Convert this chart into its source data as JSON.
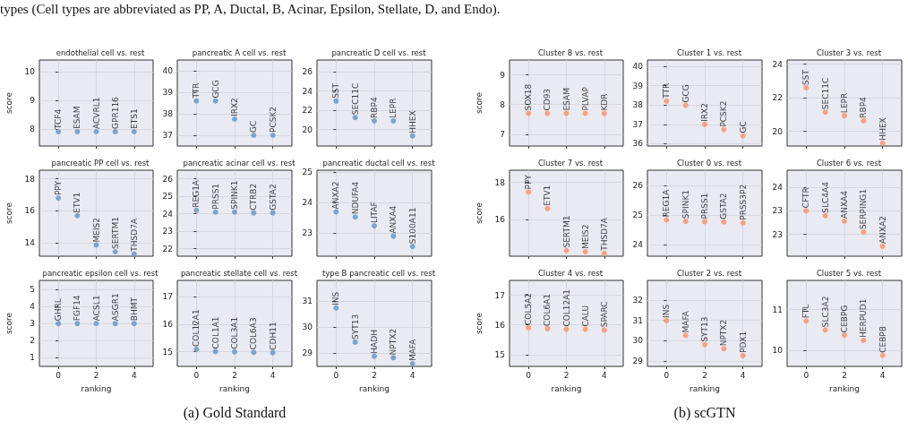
{
  "chart_data": [
    {
      "type": "scatter",
      "title": "endothelial cell vs. rest",
      "ylabel": "score",
      "x": [
        0,
        1,
        2,
        3,
        4
      ],
      "values": [
        7.9,
        7.9,
        7.9,
        7.9,
        7.9
      ],
      "color": "#79a5cf",
      "xlim": [
        -1,
        5
      ],
      "xticks": [
        0,
        2,
        4
      ],
      "ylim": [
        7.4,
        10.4
      ],
      "yticks": [
        8,
        9,
        10
      ],
      "grid": true,
      "marker": "circle",
      "tick_labels": "y",
      "annotations": [
        "types (Cell types are abbreviated as PP, A, Ductal, B, Acinar, Epsilon, Stellate, D, and Endo).",
        {
          "text": "TCF4",
          "x": 0,
          "y": 7.9
        },
        {
          "text": "ESAM",
          "x": 1,
          "y": 7.9
        },
        {
          "text": "ACVRL1",
          "x": 2,
          "y": 7.9
        },
        {
          "text": "GPR116",
          "x": 3,
          "y": 7.9
        },
        {
          "text": "ETS1",
          "x": 4,
          "y": 7.9
        }
      ]
    },
    {
      "type": "scatter",
      "title": "pancreatic A cell vs. rest",
      "x": [
        0,
        1,
        2,
        3,
        4
      ],
      "values": [
        38.6,
        38.6,
        37.75,
        37.0,
        37.0
      ],
      "color": "#79a5cf",
      "xlim": [
        -1,
        5
      ],
      "xticks": [
        0,
        2,
        4
      ],
      "ylim": [
        36.5,
        40.5
      ],
      "yticks": [
        37,
        38,
        39,
        40
      ],
      "grid": true,
      "marker": "circle",
      "tick_labels": "y",
      "annotations": [
        {
          "text": "TTR",
          "x": 0,
          "y": 38.6
        },
        {
          "text": "GCG",
          "x": 1,
          "y": 38.6
        },
        {
          "text": "IRX2",
          "x": 2,
          "y": 37.75
        },
        {
          "text": "GC",
          "x": 3,
          "y": 37.0
        },
        {
          "text": "PCSK2",
          "x": 4,
          "y": 37.0
        }
      ]
    },
    {
      "type": "scatter",
      "title": "pancreatic D cell vs. rest",
      "x": [
        0,
        1,
        2,
        3,
        4
      ],
      "values": [
        22.95,
        21.25,
        20.9,
        20.9,
        19.35
      ],
      "color": "#79a5cf",
      "xlim": [
        -1,
        5
      ],
      "xticks": [
        0,
        2,
        4
      ],
      "ylim": [
        18.3,
        27.2
      ],
      "yticks": [
        20,
        22,
        24,
        26
      ],
      "grid": true,
      "marker": "circle",
      "tick_labels": "y",
      "annotations": [
        {
          "text": "SST",
          "x": 0,
          "y": 22.95
        },
        {
          "text": "SEC11C",
          "x": 1,
          "y": 21.25
        },
        {
          "text": "RBP4",
          "x": 2,
          "y": 20.9
        },
        {
          "text": "LEPR",
          "x": 3,
          "y": 20.9
        },
        {
          "text": "HHEX",
          "x": 4,
          "y": 19.35
        }
      ]
    },
    {
      "type": "scatter",
      "title": "pancreatic PP cell vs. rest",
      "ylabel": "score",
      "x": [
        0,
        1,
        2,
        3,
        4
      ],
      "values": [
        16.8,
        15.7,
        13.87,
        13.45,
        13.3
      ],
      "color": "#79a5cf",
      "xlim": [
        -1,
        5
      ],
      "xticks": [
        0,
        2,
        4
      ],
      "ylim": [
        13.17,
        18.54
      ],
      "yticks": [
        14,
        16,
        18
      ],
      "grid": true,
      "marker": "circle",
      "tick_labels": "y",
      "annotations": [
        {
          "text": "PPY",
          "x": 0,
          "y": 16.8
        },
        {
          "text": "ETV1",
          "x": 1,
          "y": 15.7
        },
        {
          "text": "MEIS2",
          "x": 2,
          "y": 13.87
        },
        {
          "text": "SERTM1",
          "x": 3,
          "y": 13.45
        },
        {
          "text": "THSD7A",
          "x": 4,
          "y": 13.3
        }
      ]
    },
    {
      "type": "scatter",
      "title": "pancreatic acinar cell vs. rest",
      "x": [
        0,
        1,
        2,
        3,
        4
      ],
      "values": [
        24.2,
        24.1,
        24.1,
        24.05,
        24.05
      ],
      "color": "#79a5cf",
      "xlim": [
        -1,
        5
      ],
      "xticks": [
        0,
        2,
        4
      ],
      "ylim": [
        21.57,
        26.5
      ],
      "yticks": [
        22,
        23,
        24,
        25,
        26
      ],
      "grid": true,
      "marker": "circle",
      "tick_labels": "y",
      "annotations": [
        {
          "text": "REG1A",
          "x": 0,
          "y": 24.2
        },
        {
          "text": "PRSS1",
          "x": 1,
          "y": 24.1
        },
        {
          "text": "SPINK1",
          "x": 2,
          "y": 24.1
        },
        {
          "text": "CTRB2",
          "x": 3,
          "y": 24.05
        },
        {
          "text": "GSTA2",
          "x": 4,
          "y": 24.05
        }
      ]
    },
    {
      "type": "scatter",
      "title": "pancreatic ductal cell vs. rest",
      "x": [
        0,
        1,
        2,
        3,
        4
      ],
      "values": [
        23.7,
        23.53,
        23.24,
        22.9,
        22.56
      ],
      "color": "#79a5cf",
      "xlim": [
        -1,
        5
      ],
      "xticks": [
        0,
        2,
        4
      ],
      "ylim": [
        22.24,
        25.07
      ],
      "yticks": [
        23,
        24,
        25
      ],
      "grid": true,
      "marker": "circle",
      "tick_labels": "y",
      "annotations": [
        {
          "text": "ANXA2",
          "x": 0,
          "y": 23.7
        },
        {
          "text": "NDUFA4",
          "x": 1,
          "y": 23.53
        },
        {
          "text": "LITAF",
          "x": 2,
          "y": 23.24
        },
        {
          "text": "ANXA4",
          "x": 3,
          "y": 22.9
        },
        {
          "text": "S100A11",
          "x": 4,
          "y": 22.56
        }
      ]
    },
    {
      "type": "scatter",
      "title": "pancreatic epsilon cell vs. rest",
      "ylabel": "score",
      "xlabel": "ranking",
      "x": [
        0,
        1,
        2,
        3,
        4
      ],
      "values": [
        3,
        3,
        3,
        3,
        3
      ],
      "color": "#79a5cf",
      "xlim": [
        -1,
        5
      ],
      "xticks": [
        0,
        2,
        4
      ],
      "ylim": [
        0.5,
        5.52
      ],
      "yticks": [
        1,
        2,
        3,
        4,
        5
      ],
      "grid": true,
      "marker": "circle",
      "annotations": [
        {
          "text": "GHRL",
          "x": 0,
          "y": 3
        },
        {
          "text": "FGF14",
          "x": 1,
          "y": 3
        },
        {
          "text": "ACSL1",
          "x": 2,
          "y": 3
        },
        {
          "text": "ASGR1",
          "x": 3,
          "y": 3
        },
        {
          "text": "BHMT",
          "x": 4,
          "y": 3
        }
      ]
    },
    {
      "type": "scatter",
      "title": "pancreatic stellate cell vs. rest",
      "xlabel": "ranking",
      "x": [
        0,
        1,
        2,
        3,
        4
      ],
      "values": [
        15.09,
        15.01,
        15.0,
        14.98,
        14.97
      ],
      "color": "#79a5cf",
      "xlim": [
        -1,
        5
      ],
      "xticks": [
        0,
        2,
        4
      ],
      "ylim": [
        14.47,
        17.6
      ],
      "yticks": [
        15,
        16,
        17
      ],
      "grid": true,
      "marker": "circle",
      "annotations": [
        "(a) Gold Standard",
        {
          "text": "COL12A1",
          "x": 0,
          "y": 15.09
        },
        {
          "text": "COL1A1",
          "x": 1,
          "y": 15.01
        },
        {
          "text": "COL3A1",
          "x": 2,
          "y": 15.0
        },
        {
          "text": "COL6A3",
          "x": 3,
          "y": 14.98
        },
        {
          "text": "CDH11",
          "x": 4,
          "y": 14.97
        }
      ]
    },
    {
      "type": "scatter",
      "title": "type B pancreatic cell vs. rest",
      "xlabel": "ranking",
      "x": [
        0,
        1,
        2,
        3,
        4
      ],
      "values": [
        30.74,
        29.43,
        28.89,
        28.83,
        28.6
      ],
      "color": "#79a5cf",
      "xlim": [
        -1,
        5
      ],
      "xticks": [
        0,
        2,
        4
      ],
      "ylim": [
        28.5,
        31.8
      ],
      "yticks": [
        29,
        30,
        31
      ],
      "grid": true,
      "marker": "circle",
      "annotations": [
        {
          "text": "INS",
          "x": 0,
          "y": 30.74
        },
        {
          "text": "SYT13",
          "x": 1,
          "y": 29.43
        },
        {
          "text": "HADH",
          "x": 2,
          "y": 28.89
        },
        {
          "text": "NPTX2",
          "x": 3,
          "y": 28.83
        },
        {
          "text": "MAFA",
          "x": 4,
          "y": 28.6
        }
      ]
    },
    {
      "type": "scatter",
      "title": "Cluster 8 vs. rest",
      "ylabel": "score",
      "x": [
        0,
        1,
        2,
        3,
        4
      ],
      "values": [
        7.7,
        7.7,
        7.7,
        7.7,
        7.7
      ],
      "color": "#f6a282",
      "xlim": [
        -1,
        5
      ],
      "xticks": [
        0,
        2,
        4
      ],
      "ylim": [
        6.6,
        9.5
      ],
      "yticks": [
        7,
        8,
        9
      ],
      "grid": true,
      "marker": "circle",
      "tick_labels": "y",
      "annotations": [
        {
          "text": "SOX18",
          "x": 0,
          "y": 7.7
        },
        {
          "text": "CD93",
          "x": 1,
          "y": 7.7
        },
        {
          "text": "ESAM",
          "x": 2,
          "y": 7.7
        },
        {
          "text": "PLVAP",
          "x": 3,
          "y": 7.7
        },
        {
          "text": "KDR",
          "x": 4,
          "y": 7.7
        }
      ]
    },
    {
      "type": "scatter",
      "title": "Cluster 1 vs. rest",
      "x": [
        0,
        1,
        2,
        3,
        4
      ],
      "values": [
        38.2,
        37.98,
        37.0,
        36.73,
        36.41
      ],
      "color": "#f6a282",
      "xlim": [
        -1,
        5
      ],
      "xticks": [
        0,
        2,
        4
      ],
      "ylim": [
        35.88,
        40.32
      ],
      "yticks": [
        36,
        37,
        38,
        39,
        40
      ],
      "grid": true,
      "marker": "circle",
      "tick_labels": "y",
      "annotations": [
        {
          "text": "TTR",
          "x": 0,
          "y": 38.2
        },
        {
          "text": "GCG",
          "x": 1,
          "y": 37.98
        },
        {
          "text": "IRX2",
          "x": 2,
          "y": 37.0
        },
        {
          "text": "PCSK2",
          "x": 3,
          "y": 36.73
        },
        {
          "text": "GC",
          "x": 4,
          "y": 36.41
        }
      ]
    },
    {
      "type": "scatter",
      "title": "Cluster 3 vs. rest",
      "x": [
        0,
        1,
        2,
        3,
        4
      ],
      "values": [
        22.6,
        21.14,
        20.93,
        20.63,
        19.3
      ],
      "color": "#f6a282",
      "xlim": [
        -1,
        5
      ],
      "xticks": [
        0,
        2,
        4
      ],
      "ylim": [
        19.12,
        24.25
      ],
      "yticks": [
        20,
        22,
        24
      ],
      "grid": true,
      "marker": "circle",
      "tick_labels": "y",
      "annotations": [
        {
          "text": "SST",
          "x": 0,
          "y": 22.6
        },
        {
          "text": "SEC11C",
          "x": 1,
          "y": 21.14
        },
        {
          "text": "LEPR",
          "x": 2,
          "y": 20.93
        },
        {
          "text": "RBP4",
          "x": 3,
          "y": 20.63
        },
        {
          "text": "HHEX",
          "x": 4,
          "y": 19.3
        }
      ]
    },
    {
      "type": "scatter",
      "title": "Cluster 7 vs. rest",
      "ylabel": "score",
      "x": [
        0,
        1,
        2,
        3,
        4
      ],
      "values": [
        17.48,
        16.6,
        14.36,
        14.29,
        14.2
      ],
      "color": "#f6a282",
      "xlim": [
        -1,
        5
      ],
      "xticks": [
        0,
        2,
        4
      ],
      "ylim": [
        14.05,
        18.65
      ],
      "yticks": [
        16,
        18
      ],
      "grid": true,
      "marker": "circle",
      "tick_labels": "y",
      "annotations": [
        {
          "text": "PPY",
          "x": 0,
          "y": 17.48
        },
        {
          "text": "ETV1",
          "x": 1,
          "y": 16.6
        },
        {
          "text": "SERTM1",
          "x": 2,
          "y": 14.36
        },
        {
          "text": "MEIS2",
          "x": 3,
          "y": 14.29
        },
        {
          "text": "THSD7A",
          "x": 4,
          "y": 14.2
        }
      ]
    },
    {
      "type": "scatter",
      "title": "Cluster 0 vs. rest",
      "x": [
        0,
        1,
        2,
        3,
        4
      ],
      "values": [
        24.84,
        24.79,
        24.78,
        24.77,
        24.74
      ],
      "color": "#f6a282",
      "xlim": [
        -1,
        5
      ],
      "xticks": [
        0,
        2,
        4
      ],
      "ylim": [
        23.62,
        26.51
      ],
      "yticks": [
        24,
        25,
        26
      ],
      "grid": true,
      "marker": "circle",
      "tick_labels": "y",
      "annotations": [
        {
          "text": "REG1A",
          "x": 0,
          "y": 24.84
        },
        {
          "text": "SPINK1",
          "x": 1,
          "y": 24.79
        },
        {
          "text": "PRSS1",
          "x": 2,
          "y": 24.78
        },
        {
          "text": "GSTA2",
          "x": 3,
          "y": 24.77
        },
        {
          "text": "PRSS3P2",
          "x": 4,
          "y": 24.74
        }
      ]
    },
    {
      "type": "scatter",
      "title": "Cluster 6 vs. rest",
      "x": [
        0,
        1,
        2,
        3,
        4
      ],
      "values": [
        23.5,
        23.4,
        23.28,
        23.05,
        22.75
      ],
      "color": "#f6a282",
      "xlim": [
        -1,
        5
      ],
      "xticks": [
        0,
        2,
        4
      ],
      "ylim": [
        22.54,
        24.36
      ],
      "yticks": [
        {
          "value": 23,
          "label": "23"
        },
        {
          "value": 23.5,
          "label": "23"
        },
        {
          "value": 24,
          "label": "24"
        }
      ],
      "grid": true,
      "marker": "circle",
      "tick_labels": "y",
      "annotations": [
        {
          "text": "CFTR",
          "x": 0,
          "y": 23.5
        },
        {
          "text": "SLC4A4",
          "x": 1,
          "y": 23.4
        },
        {
          "text": "ANXA4",
          "x": 2,
          "y": 23.28
        },
        {
          "text": "SERPING1",
          "x": 3,
          "y": 23.05
        },
        {
          "text": "ANXA2",
          "x": 4,
          "y": 22.75
        }
      ]
    },
    {
      "type": "scatter",
      "title": "Cluster 4 vs. rest",
      "ylabel": "score",
      "xlabel": "ranking",
      "x": [
        0,
        1,
        2,
        3,
        4
      ],
      "values": [
        15.9,
        15.87,
        15.85,
        15.85,
        15.83
      ],
      "color": "#f6a282",
      "xlim": [
        -1,
        5
      ],
      "xticks": [
        0,
        2,
        4
      ],
      "ylim": [
        14.6,
        17.5
      ],
      "yticks": [
        15,
        16,
        17
      ],
      "grid": true,
      "marker": "circle",
      "annotations": [
        {
          "text": "COL5A2",
          "x": 0,
          "y": 15.9
        },
        {
          "text": "COL6A1",
          "x": 1,
          "y": 15.87
        },
        {
          "text": "COL12A1",
          "x": 2,
          "y": 15.85
        },
        {
          "text": "CALU",
          "x": 3,
          "y": 15.85
        },
        {
          "text": "SPARC",
          "x": 4,
          "y": 15.83
        }
      ]
    },
    {
      "type": "scatter",
      "title": "Cluster 2 vs. rest",
      "xlabel": "ranking",
      "x": [
        0,
        1,
        2,
        3,
        4
      ],
      "values": [
        30.99,
        30.26,
        29.81,
        29.6,
        29.26
      ],
      "color": "#f6a282",
      "xlim": [
        -1,
        5
      ],
      "xticks": [
        0,
        2,
        4
      ],
      "ylim": [
        28.73,
        32.98
      ],
      "yticks": [
        29,
        30,
        31,
        32
      ],
      "grid": true,
      "marker": "circle",
      "annotations": [
        "(b) scGTN",
        {
          "text": "INS",
          "x": 0,
          "y": 30.99
        },
        {
          "text": "MAFA",
          "x": 1,
          "y": 30.26
        },
        {
          "text": "SYT13",
          "x": 2,
          "y": 29.81
        },
        {
          "text": "NPTX2",
          "x": 3,
          "y": 29.6
        },
        {
          "text": "PDX1",
          "x": 4,
          "y": 29.26
        }
      ]
    },
    {
      "type": "scatter",
      "title": "Cluster 5 vs. rest",
      "xlabel": "ranking",
      "x": [
        0,
        1,
        2,
        3,
        4
      ],
      "values": [
        10.72,
        10.5,
        10.37,
        10.24,
        9.87
      ],
      "color": "#f6a282",
      "xlim": [
        -1,
        5
      ],
      "xticks": [
        0,
        2,
        4
      ],
      "ylim": [
        9.6,
        11.72
      ],
      "yticks": [
        10,
        11
      ],
      "grid": true,
      "marker": "circle",
      "annotations": [
        {
          "text": "FTL",
          "x": 0,
          "y": 10.72
        },
        {
          "text": "SLC3A2",
          "x": 1,
          "y": 10.5
        },
        {
          "text": "CEBPG",
          "x": 2,
          "y": 10.37
        },
        {
          "text": "HERPUD1",
          "x": 3,
          "y": 10.24
        },
        {
          "text": "CEBPB",
          "x": 4,
          "y": 9.87
        }
      ]
    }
  ]
}
